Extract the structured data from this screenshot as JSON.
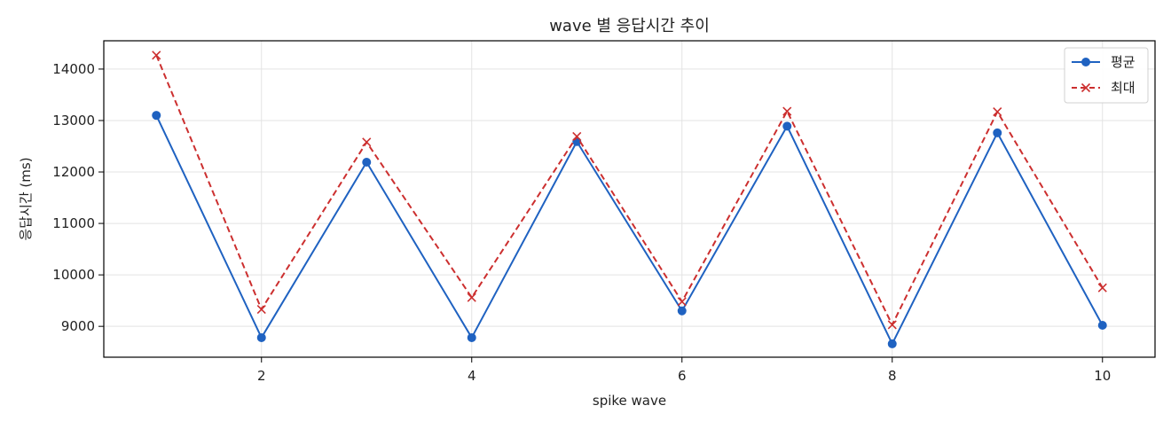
{
  "chart_data": {
    "type": "line",
    "title": "wave 별 응답시간 추이",
    "xlabel": "spike wave",
    "ylabel": "응답시간 (ms)",
    "x": [
      1,
      2,
      3,
      4,
      5,
      6,
      7,
      8,
      9,
      10
    ],
    "xlim": [
      0.5,
      10.5
    ],
    "ylim": [
      8400,
      14550
    ],
    "x_ticks": [
      2,
      4,
      6,
      8,
      10
    ],
    "y_ticks": [
      9000,
      10000,
      11000,
      12000,
      13000,
      14000
    ],
    "grid": true,
    "legend_position": "top-right",
    "series": [
      {
        "name": "평균",
        "color": "#1f62c1",
        "marker": "circle",
        "line_style": "solid",
        "values": [
          13100,
          8780,
          12190,
          8780,
          12590,
          9300,
          12890,
          8660,
          12760,
          9020
        ]
      },
      {
        "name": "최대",
        "color": "#cc2f2f",
        "marker": "x",
        "line_style": "dashed",
        "values": [
          14270,
          9330,
          12580,
          9560,
          12690,
          9480,
          13180,
          9030,
          13170,
          9750
        ]
      }
    ]
  }
}
